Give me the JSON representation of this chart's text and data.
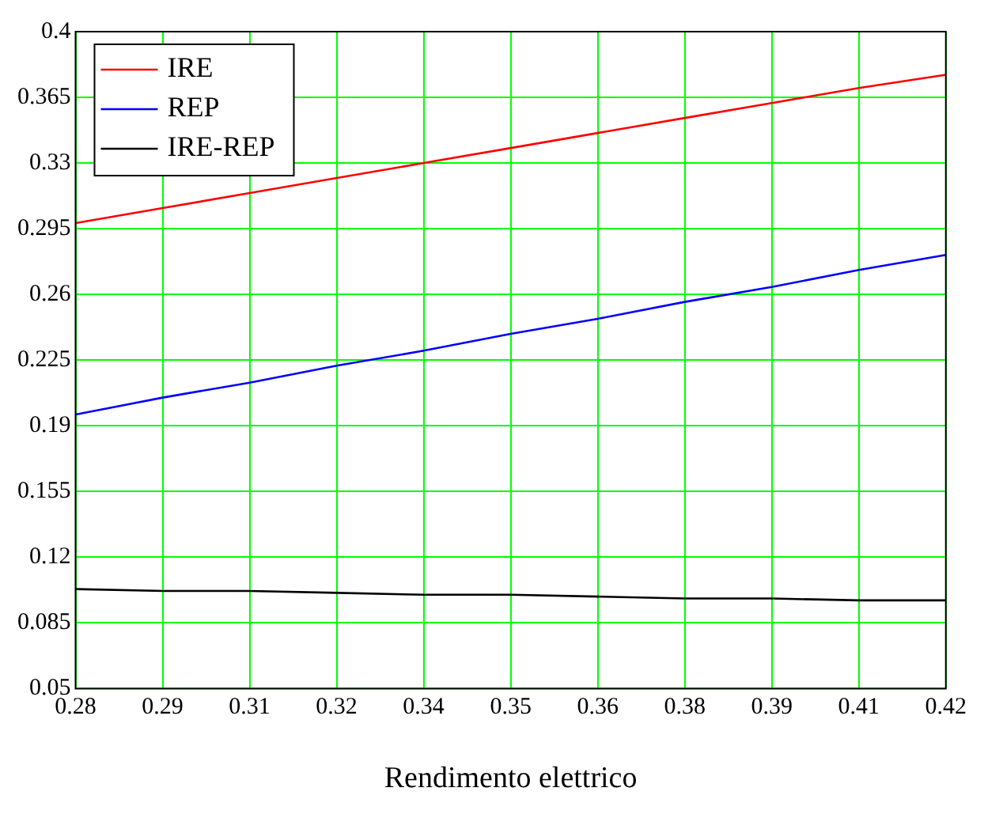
{
  "chart_data": {
    "type": "line",
    "xlabel": "Rendimento elettrico",
    "x": [
      0.28,
      0.294,
      0.308,
      0.322,
      0.336,
      0.35,
      0.364,
      0.378,
      0.392,
      0.406,
      0.42
    ],
    "series": [
      {
        "name": "IRE",
        "color": "#ff0000",
        "values": [
          0.298,
          0.306,
          0.314,
          0.322,
          0.33,
          0.338,
          0.346,
          0.354,
          0.362,
          0.37,
          0.377
        ]
      },
      {
        "name": "REP",
        "color": "#0000ff",
        "values": [
          0.196,
          0.205,
          0.213,
          0.222,
          0.23,
          0.239,
          0.247,
          0.256,
          0.264,
          0.273,
          0.281
        ]
      },
      {
        "name": "IRE-REP",
        "color": "#000000",
        "values": [
          0.103,
          0.102,
          0.102,
          0.101,
          0.1,
          0.1,
          0.099,
          0.098,
          0.098,
          0.097,
          0.097
        ]
      }
    ],
    "xlim": [
      0.28,
      0.42
    ],
    "xticks": [
      0.28,
      {
        "value": 0.294,
        "label": "0.29"
      },
      {
        "value": 0.308,
        "label": "0.31"
      },
      {
        "value": 0.322,
        "label": "0.32"
      },
      {
        "value": 0.336,
        "label": "0.34"
      },
      0.35,
      {
        "value": 0.364,
        "label": "0.36"
      },
      {
        "value": 0.378,
        "label": "0.38"
      },
      {
        "value": 0.392,
        "label": "0.39"
      },
      {
        "value": 0.406,
        "label": "0.41"
      },
      0.42
    ],
    "ylim": [
      0.05,
      0.4
    ],
    "yticks": [
      0.05,
      0.085,
      0.12,
      0.155,
      0.19,
      0.225,
      0.26,
      0.295,
      0.33,
      0.365,
      0.4
    ],
    "grid": true,
    "legend": "top left",
    "marker": "none",
    "line_style": "solid"
  }
}
